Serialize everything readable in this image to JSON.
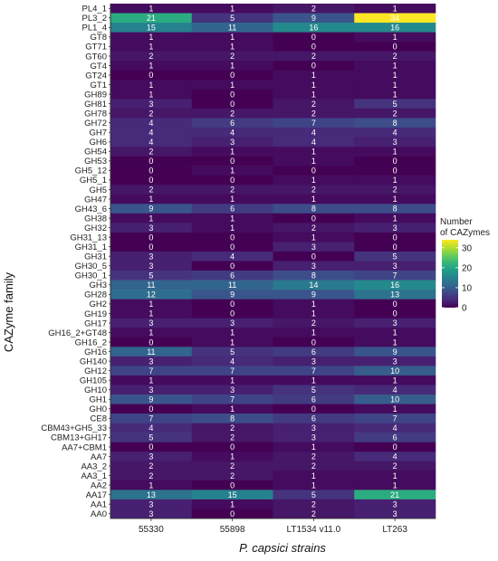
{
  "chart_data": {
    "type": "heatmap",
    "xlabel": "P. capsici strains",
    "ylabel": "CAZyme family",
    "columns": [
      "55330",
      "55898",
      "LT1534 v11.0",
      "LT263"
    ],
    "rows": [
      "PL4_1",
      "PL3_2",
      "PL1_4",
      "GT8",
      "GT71",
      "GT60",
      "GT4",
      "GT24",
      "GT1",
      "GH89",
      "GH81",
      "GH78",
      "GH72",
      "GH7",
      "GH6",
      "GH54",
      "GH53",
      "GH5_12",
      "GH5_1",
      "GH5",
      "GH47",
      "GH43_6",
      "GH38",
      "GH32",
      "GH31_13",
      "GH31_1",
      "GH31",
      "GH30_5",
      "GH30_1",
      "GH3",
      "GH28",
      "GH2",
      "GH19",
      "GH17",
      "GH16_2+GT48",
      "GH16_2",
      "GH16",
      "GH140",
      "GH12",
      "GH105",
      "GH10",
      "GH1",
      "GH0",
      "CE8",
      "CBM43+GH5_33",
      "CBM13+GH17",
      "AA7+CBM1",
      "AA7",
      "AA3_2",
      "AA3_1",
      "AA2",
      "AA17",
      "AA1",
      "AA0"
    ],
    "values": [
      [
        1,
        1,
        2,
        1
      ],
      [
        21,
        5,
        9,
        34
      ],
      [
        15,
        11,
        16,
        16
      ],
      [
        1,
        1,
        0,
        1
      ],
      [
        1,
        1,
        0,
        0
      ],
      [
        2,
        2,
        2,
        2
      ],
      [
        1,
        1,
        0,
        1
      ],
      [
        0,
        0,
        1,
        1
      ],
      [
        1,
        1,
        1,
        1
      ],
      [
        1,
        0,
        1,
        1
      ],
      [
        3,
        0,
        2,
        5
      ],
      [
        2,
        2,
        2,
        2
      ],
      [
        4,
        6,
        7,
        8
      ],
      [
        4,
        4,
        4,
        4
      ],
      [
        4,
        3,
        4,
        3
      ],
      [
        2,
        1,
        1,
        1
      ],
      [
        0,
        0,
        1,
        0
      ],
      [
        0,
        1,
        0,
        0
      ],
      [
        0,
        0,
        1,
        1
      ],
      [
        2,
        2,
        2,
        2
      ],
      [
        1,
        1,
        1,
        1
      ],
      [
        9,
        6,
        8,
        8
      ],
      [
        1,
        1,
        0,
        1
      ],
      [
        3,
        1,
        2,
        3
      ],
      [
        0,
        0,
        1,
        0
      ],
      [
        0,
        0,
        3,
        0
      ],
      [
        3,
        4,
        0,
        5
      ],
      [
        3,
        0,
        3,
        3
      ],
      [
        5,
        6,
        8,
        7
      ],
      [
        11,
        11,
        14,
        16
      ],
      [
        12,
        9,
        9,
        13
      ],
      [
        1,
        0,
        1,
        0
      ],
      [
        1,
        0,
        1,
        0
      ],
      [
        3,
        3,
        2,
        3
      ],
      [
        1,
        1,
        1,
        1
      ],
      [
        0,
        1,
        0,
        1
      ],
      [
        11,
        5,
        6,
        9
      ],
      [
        3,
        4,
        3,
        3
      ],
      [
        7,
        7,
        7,
        10
      ],
      [
        1,
        1,
        1,
        1
      ],
      [
        3,
        3,
        5,
        4
      ],
      [
        9,
        7,
        6,
        10
      ],
      [
        0,
        1,
        0,
        1
      ],
      [
        7,
        8,
        6,
        7
      ],
      [
        4,
        2,
        3,
        4
      ],
      [
        5,
        2,
        3,
        6
      ],
      [
        0,
        0,
        1,
        0
      ],
      [
        3,
        1,
        2,
        4
      ],
      [
        2,
        2,
        2,
        2
      ],
      [
        2,
        2,
        1,
        1
      ],
      [
        1,
        0,
        1,
        1
      ],
      [
        13,
        15,
        5,
        21
      ],
      [
        3,
        1,
        2,
        3
      ],
      [
        3,
        0,
        2,
        3
      ]
    ],
    "legend": {
      "title_line1": "Number",
      "title_line2": "of CAZymes",
      "ticks": [
        0,
        10,
        20,
        30
      ],
      "range": [
        0,
        34
      ],
      "placement": "right"
    },
    "colormap": [
      "#440154",
      "#482878",
      "#3e4989",
      "#31688e",
      "#26828e",
      "#1f9e89",
      "#35b779",
      "#6ece58",
      "#b5de2b",
      "#fde725"
    ],
    "grid": false
  }
}
